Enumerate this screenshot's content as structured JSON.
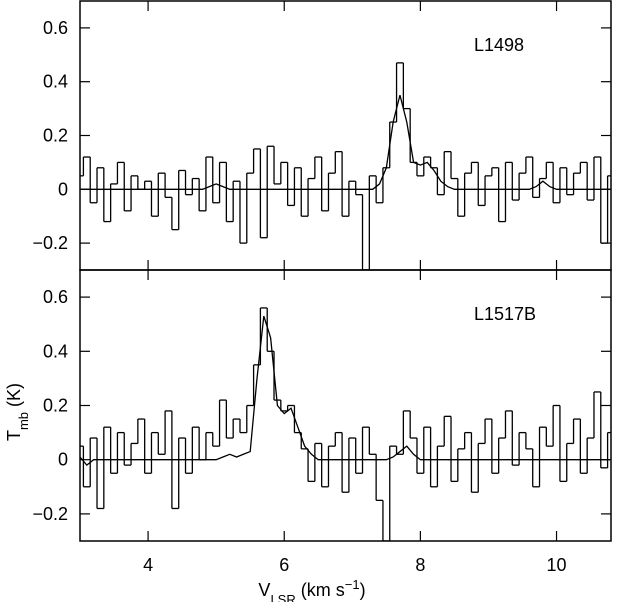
{
  "chart_data": [
    {
      "type": "step",
      "label": "L1498",
      "xlim": [
        3,
        10.8
      ],
      "ylim": [
        -0.3,
        0.7
      ],
      "xticks": [
        4,
        6,
        8,
        10
      ],
      "show_xtick_labels": false,
      "yticks": [
        {
          "value": -0.2,
          "label": "−0.2"
        },
        0,
        0.2,
        0.4,
        0.6
      ],
      "x": [
        3.0,
        3.1,
        3.2,
        3.3,
        3.4,
        3.5,
        3.6,
        3.7,
        3.8,
        3.9,
        4.0,
        4.1,
        4.2,
        4.3,
        4.4,
        4.5,
        4.6,
        4.7,
        4.8,
        4.9,
        5.0,
        5.1,
        5.2,
        5.3,
        5.4,
        5.5,
        5.6,
        5.7,
        5.8,
        5.9,
        6.0,
        6.1,
        6.2,
        6.3,
        6.4,
        6.5,
        6.6,
        6.7,
        6.8,
        6.9,
        7.0,
        7.1,
        7.2,
        7.3,
        7.4,
        7.5,
        7.6,
        7.7,
        7.8,
        7.9,
        8.0,
        8.1,
        8.2,
        8.3,
        8.4,
        8.5,
        8.6,
        8.7,
        8.8,
        8.9,
        9.0,
        9.1,
        9.2,
        9.3,
        9.4,
        9.5,
        9.6,
        9.7,
        9.8,
        9.9,
        10.0,
        10.1,
        10.2,
        10.3,
        10.4,
        10.5,
        10.6,
        10.7,
        10.8
      ],
      "series": [
        {
          "color": "#000000",
          "style": "step",
          "values": [
            0.05,
            0.12,
            -0.05,
            0.08,
            -0.12,
            0.02,
            0.1,
            -0.08,
            0.05,
            0.0,
            0.03,
            -0.1,
            0.06,
            -0.03,
            -0.15,
            0.07,
            -0.02,
            0.04,
            -0.08,
            0.12,
            -0.05,
            0.1,
            -0.12,
            0.03,
            -0.2,
            0.06,
            0.15,
            -0.18,
            0.16,
            0.02,
            0.1,
            -0.06,
            0.08,
            -0.1,
            0.04,
            0.12,
            -0.08,
            0.06,
            0.14,
            -0.1,
            0.03,
            -0.02,
            -0.3,
            0.05,
            -0.05,
            0.08,
            0.25,
            0.47,
            0.3,
            0.1,
            0.05,
            0.12,
            0.08,
            -0.02,
            0.14,
            0.04,
            -0.1,
            0.06,
            0.1,
            -0.06,
            0.05,
            0.08,
            -0.12,
            0.1,
            -0.04,
            0.06,
            0.12,
            -0.03,
            0.04,
            0.1,
            -0.05,
            0.08,
            -0.02,
            0.06,
            0.1,
            -0.04,
            0.12,
            -0.2,
            0.05
          ]
        },
        {
          "color": "#000000",
          "style": "line",
          "values": [
            0,
            0,
            0,
            0,
            0,
            0,
            0,
            0,
            0,
            0,
            0,
            0,
            0,
            0,
            0,
            0,
            0,
            0,
            0,
            0.01,
            0.02,
            0.01,
            0,
            0,
            0,
            0,
            0,
            0,
            0,
            0,
            0,
            0,
            0,
            0,
            0,
            0,
            0,
            0,
            0,
            0,
            0,
            0,
            0,
            0,
            0.02,
            0.08,
            0.25,
            0.35,
            0.25,
            0.1,
            0.09,
            0.1,
            0.07,
            0.03,
            0.01,
            0,
            0,
            0,
            0,
            0,
            0,
            0,
            0,
            0,
            0,
            0,
            0,
            0.01,
            0.03,
            0.01,
            0,
            0,
            0,
            0,
            0,
            0,
            0,
            0,
            0
          ]
        }
      ]
    },
    {
      "type": "step",
      "label": "L1517B",
      "xlim": [
        3,
        10.8
      ],
      "ylim": [
        -0.3,
        0.7
      ],
      "xticks": [
        4,
        6,
        8,
        10
      ],
      "show_xtick_labels": true,
      "yticks": [
        {
          "value": -0.2,
          "label": "−0.2"
        },
        0,
        0.2,
        0.4,
        0.6
      ],
      "xlabel": {
        "main": "V",
        "sub": "LSR",
        "unit": " (km s",
        "sup": "−1",
        "end": ")"
      },
      "ylabel": {
        "main": "T",
        "sub": "mb",
        "unit": " (K)"
      },
      "x": [
        3.0,
        3.1,
        3.2,
        3.3,
        3.4,
        3.5,
        3.6,
        3.7,
        3.8,
        3.9,
        4.0,
        4.1,
        4.2,
        4.3,
        4.4,
        4.5,
        4.6,
        4.7,
        4.8,
        4.9,
        5.0,
        5.1,
        5.2,
        5.3,
        5.4,
        5.5,
        5.6,
        5.7,
        5.8,
        5.9,
        6.0,
        6.1,
        6.2,
        6.3,
        6.4,
        6.5,
        6.6,
        6.7,
        6.8,
        6.9,
        7.0,
        7.1,
        7.2,
        7.3,
        7.4,
        7.5,
        7.6,
        7.7,
        7.8,
        7.9,
        8.0,
        8.1,
        8.2,
        8.3,
        8.4,
        8.5,
        8.6,
        8.7,
        8.8,
        8.9,
        9.0,
        9.1,
        9.2,
        9.3,
        9.4,
        9.5,
        9.6,
        9.7,
        9.8,
        9.9,
        10.0,
        10.1,
        10.2,
        10.3,
        10.4,
        10.5,
        10.6,
        10.7,
        10.8
      ],
      "series": [
        {
          "color": "#000000",
          "style": "step",
          "values": [
            0.05,
            -0.1,
            0.08,
            -0.18,
            0.12,
            -0.05,
            0.1,
            -0.02,
            0.06,
            0.15,
            -0.05,
            0.1,
            0.02,
            0.18,
            -0.18,
            0.08,
            -0.05,
            0.12,
            0.0,
            0.1,
            0.05,
            0.22,
            0.08,
            0.15,
            0.1,
            0.2,
            0.35,
            0.56,
            0.4,
            0.22,
            0.18,
            0.2,
            0.1,
            0.04,
            -0.08,
            0.06,
            -0.1,
            0.05,
            0.1,
            -0.12,
            0.08,
            -0.05,
            0.12,
            0.02,
            -0.15,
            -0.3,
            0.05,
            0.02,
            0.18,
            0.08,
            -0.05,
            0.12,
            -0.1,
            0.05,
            0.16,
            -0.08,
            0.04,
            0.1,
            -0.12,
            0.06,
            0.15,
            -0.05,
            0.08,
            0.18,
            -0.02,
            0.1,
            0.04,
            -0.1,
            0.12,
            0.05,
            0.2,
            -0.08,
            0.06,
            0.15,
            -0.05,
            0.08,
            0.25,
            -0.03,
            0.1
          ]
        },
        {
          "color": "#000000",
          "style": "line",
          "values": [
            0.01,
            -0.02,
            0,
            0,
            0,
            0,
            0,
            0,
            0,
            0,
            0,
            0,
            0,
            0,
            0,
            0,
            0,
            0,
            0,
            0,
            0,
            0.01,
            0.02,
            0.01,
            0.02,
            0.03,
            0.3,
            0.53,
            0.45,
            0.2,
            0.17,
            0.19,
            0.12,
            0.05,
            0.02,
            0,
            0,
            0,
            0,
            0,
            0,
            0,
            0,
            0,
            0,
            0,
            0.01,
            0.03,
            0.05,
            0.02,
            0,
            0,
            0,
            0,
            0,
            0,
            0,
            0,
            0,
            0,
            0,
            0,
            0,
            0,
            0,
            0,
            0,
            0,
            0,
            0,
            0,
            0,
            0,
            0,
            0,
            0,
            0,
            0,
            0
          ]
        }
      ]
    }
  ]
}
